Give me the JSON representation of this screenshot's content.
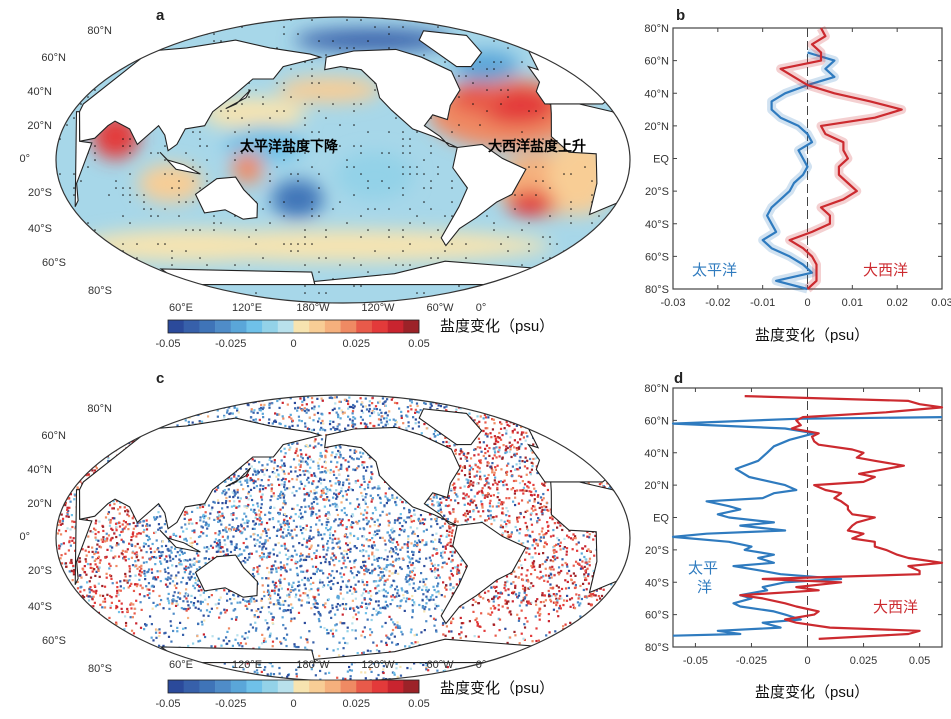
{
  "colors": {
    "pacific": "#2f7bbf",
    "atlantic": "#cc2a2f",
    "colorbar": [
      "#2b4a9b",
      "#3760aa",
      "#3f74b8",
      "#4f8cc8",
      "#5aa6d9",
      "#6fc1e9",
      "#93d2e8",
      "#b9e1ec",
      "#f7e4b0",
      "#f8cd95",
      "#f5b07d",
      "#ef8a63",
      "#e85a4a",
      "#e33a3a",
      "#c9242f",
      "#9c2228"
    ]
  },
  "chart_data": [
    {
      "panel": "a",
      "type": "heatmap",
      "lat_ticks": [
        "80°N",
        "60°N",
        "40°N",
        "20°N",
        "0°",
        "20°S",
        "40°S",
        "60°S",
        "80°S"
      ],
      "lon_ticks": [
        "60°E",
        "120°E",
        "180°W",
        "120°W",
        "60°W",
        "0°"
      ],
      "annotations": [
        "太平洋盐度下降",
        "大西洋盐度上升"
      ],
      "colorbar": {
        "ticks": [
          "-0.05",
          "-0.025",
          "0",
          "0.025",
          "0.05"
        ],
        "range": [
          -0.05,
          0.05
        ],
        "label": "盐度变化（psu）"
      },
      "stippling": true
    },
    {
      "panel": "b",
      "type": "line",
      "xlim": [
        -0.03,
        0.03
      ],
      "ylim": [
        -80,
        80
      ],
      "x_ticks": [
        "-0.03",
        "-0.02",
        "-0.01",
        "0",
        "0.01",
        "0.02",
        "0.03"
      ],
      "y_ticks": [
        "80°N",
        "60°N",
        "40°N",
        "20°N",
        "EQ",
        "20°S",
        "40°S",
        "60°S",
        "80°S"
      ],
      "xlabel": "盐度变化（psu）",
      "series": [
        {
          "name": "太平洋",
          "color": "#2f7bbf",
          "shaded": true,
          "lat": [
            65,
            60,
            55,
            50,
            45,
            40,
            35,
            30,
            25,
            20,
            15,
            10,
            5,
            0,
            -5,
            -10,
            -15,
            -20,
            -25,
            -30,
            -35,
            -40,
            -45,
            -50,
            -55,
            -60,
            -65,
            -70,
            -75,
            -80
          ],
          "values": [
            0,
            0.006,
            0.004,
            0.006,
            0,
            -0.005,
            -0.008,
            -0.008,
            -0.006,
            -0.002,
            0,
            0.001,
            -0.002,
            -0.001,
            0,
            -0.001,
            -0.003,
            -0.004,
            -0.006,
            -0.008,
            -0.009,
            -0.008,
            -0.007,
            -0.01,
            -0.008,
            -0.004,
            -0.001,
            0.001,
            -0.007,
            0
          ]
        },
        {
          "name": "大西洋",
          "color": "#cc2a2f",
          "shaded": true,
          "lat": [
            80,
            75,
            70,
            65,
            60,
            55,
            50,
            45,
            40,
            35,
            30,
            25,
            20,
            15,
            10,
            5,
            0,
            -5,
            -10,
            -15,
            -20,
            -25,
            -30,
            -35,
            -40,
            -45,
            -50,
            -55,
            -60,
            -65,
            -70,
            -75,
            -80
          ],
          "values": [
            0.003,
            0.004,
            0.001,
            0.003,
            0.003,
            -0.006,
            -0.003,
            0,
            0.006,
            0.014,
            0.021,
            0.015,
            0.003,
            0.004,
            0.008,
            0.008,
            0.009,
            0.007,
            0.007,
            0.009,
            0.011,
            0.008,
            0.003,
            0.005,
            0.005,
            0.001,
            -0.004,
            -0.001,
            0.001,
            0.002,
            0.002,
            0.002,
            0
          ]
        }
      ]
    },
    {
      "panel": "c",
      "type": "heatmap",
      "lat_ticks": [
        "80°N",
        "60°N",
        "40°N",
        "20°N",
        "0°",
        "20°S",
        "40°S",
        "60°S",
        "80°S"
      ],
      "lon_ticks": [
        "60°E",
        "120°E",
        "180°W",
        "120°W",
        "60°W",
        "0°"
      ],
      "colorbar": {
        "ticks": [
          "-0.05",
          "-0.025",
          "0",
          "0.025",
          "0.05"
        ],
        "range": [
          -0.05,
          0.05
        ],
        "label": "盐度变化（psu）"
      }
    },
    {
      "panel": "d",
      "type": "line",
      "xlim": [
        -0.06,
        0.06
      ],
      "ylim": [
        -80,
        80
      ],
      "x_ticks": [
        "-0.05",
        "-0.025",
        "0",
        "0.025",
        "0.05"
      ],
      "y_ticks": [
        "80°N",
        "60°N",
        "40°N",
        "20°N",
        "EQ",
        "20°S",
        "40°S",
        "60°S",
        "80°S"
      ],
      "xlabel": "盐度变化（psu）",
      "series": [
        {
          "name": "太平洋",
          "color": "#2f7bbf",
          "lat": [
            62,
            61,
            58,
            55,
            52,
            48,
            44,
            40,
            35,
            30,
            25,
            20,
            17,
            15,
            12,
            10,
            7,
            5,
            2,
            0,
            -3,
            -5,
            -8,
            -10,
            -12,
            -15,
            -18,
            -20,
            -23,
            -25,
            -28,
            -30,
            -33,
            -35,
            -38,
            -40,
            -43,
            -45,
            -48,
            -50,
            -53,
            -55,
            -58,
            -60,
            -63,
            -65,
            -68,
            -70,
            -72,
            -73
          ],
          "values": [
            0.06,
            -0.005,
            -0.06,
            -0.01,
            0.003,
            -0.008,
            -0.015,
            -0.018,
            -0.022,
            -0.032,
            -0.026,
            -0.01,
            -0.005,
            -0.015,
            -0.02,
            -0.045,
            -0.035,
            -0.03,
            -0.04,
            -0.035,
            -0.015,
            -0.03,
            -0.01,
            -0.045,
            -0.06,
            -0.035,
            -0.025,
            -0.028,
            -0.015,
            -0.022,
            -0.015,
            -0.033,
            -0.02,
            -0.012,
            0.015,
            -0.01,
            -0.02,
            -0.018,
            -0.03,
            -0.025,
            -0.033,
            -0.03,
            -0.015,
            -0.01,
            -0.003,
            -0.02,
            -0.012,
            -0.04,
            -0.03,
            -0.06
          ]
        },
        {
          "name": "大西洋",
          "color": "#cc2a2f",
          "lat": [
            75,
            72,
            70,
            68,
            65,
            62,
            60,
            57,
            55,
            52,
            50,
            47,
            45,
            42,
            40,
            37,
            35,
            32,
            30,
            27,
            25,
            22,
            20,
            17,
            15,
            12,
            10,
            7,
            5,
            2,
            0,
            -3,
            -5,
            -8,
            -10,
            -13,
            -15,
            -18,
            -20,
            -23,
            -25,
            -28,
            -30,
            -33,
            -35,
            -38,
            -40,
            -43,
            -45,
            -48,
            -50,
            -53,
            -55,
            -58,
            -60,
            -63,
            -65,
            -68,
            -70,
            -72,
            -75
          ],
          "values": [
            -0.028,
            0.045,
            0.05,
            0.06,
            0.035,
            -0.002,
            -0.005,
            -0.003,
            -0.007,
            0.005,
            0.002,
            0.003,
            0.005,
            0.02,
            0.025,
            0.022,
            0.03,
            0.043,
            0.035,
            0.023,
            0.03,
            0.025,
            0.003,
            0.008,
            0.015,
            0.012,
            0.015,
            0.018,
            0.018,
            0.02,
            0.03,
            0.022,
            0.02,
            0.018,
            0.025,
            0.02,
            0.03,
            0.03,
            0.035,
            0.04,
            0.045,
            0.06,
            0.045,
            0.05,
            0.05,
            -0.02,
            0.015,
            -0.005,
            0.005,
            -0.03,
            -0.02,
            -0.01,
            -0.005,
            0.005,
            0.003,
            -0.01,
            -0.005,
            0.01,
            0.05,
            0.045,
            0.005
          ]
        }
      ]
    }
  ],
  "panels": {
    "a": "a",
    "b": "b",
    "c": "c",
    "d": "d"
  },
  "map_a": {
    "lat_labels": [
      "80°N",
      "60°N",
      "40°N",
      "20°N",
      "0°",
      "20°S",
      "40°S",
      "60°S",
      "80°S"
    ],
    "lon_labels": [
      "60°E",
      "120°E",
      "180°W",
      "120°W",
      "60°W",
      "0°"
    ],
    "annotation_pacific": "太平洋盐度下降",
    "annotation_atlantic": "大西洋盐度上升",
    "colorbar_ticks": [
      "-0.05",
      "-0.025",
      "0",
      "0.025",
      "0.05"
    ],
    "colorbar_label": "盐度变化（psu）"
  },
  "map_c": {
    "lat_labels": [
      "80°N",
      "60°N",
      "40°N",
      "20°N",
      "0°",
      "20°S",
      "40°S",
      "60°S",
      "80°S"
    ],
    "lon_labels": [
      "60°E",
      "120°E",
      "180°W",
      "120°W",
      "60°W",
      "0°"
    ],
    "colorbar_ticks": [
      "-0.05",
      "-0.025",
      "0",
      "0.025",
      "0.05"
    ],
    "colorbar_label": "盐度变化（psu）"
  },
  "profile_b": {
    "y_labels": [
      "80°N",
      "60°N",
      "40°N",
      "20°N",
      "EQ",
      "20°S",
      "40°S",
      "60°S",
      "80°S"
    ],
    "x_labels": [
      "-0.03",
      "-0.02",
      "-0.01",
      "0",
      "0.01",
      "0.02",
      "0.03"
    ],
    "xlabel": "盐度变化（psu）",
    "legend_pacific": "太平洋",
    "legend_atlantic": "大西洋"
  },
  "profile_d": {
    "y_labels": [
      "80°N",
      "60°N",
      "40°N",
      "20°N",
      "EQ",
      "20°S",
      "40°S",
      "60°S",
      "80°S"
    ],
    "x_labels": [
      "-0.05",
      "-0.025",
      "0",
      "0.025",
      "0.05"
    ],
    "xlabel": "盐度变化（psu）",
    "legend_pacific_1": "太平",
    "legend_pacific_2": "洋",
    "legend_atlantic": "大西洋"
  }
}
